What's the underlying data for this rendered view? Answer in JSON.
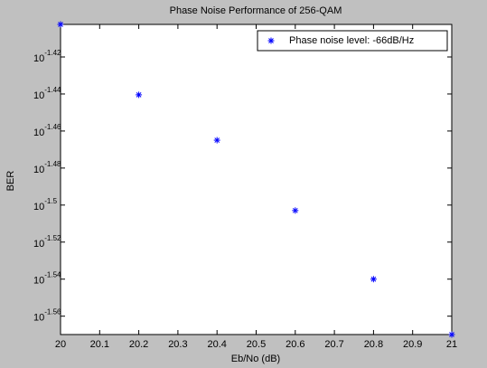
{
  "chart_data": {
    "type": "scatter",
    "title": "Phase Noise Performance of 256-QAM",
    "x_label": "Eb/No (dB)",
    "y_label": "BER",
    "y_scale": "log",
    "grid": false,
    "legend_position": "upper right",
    "xlim": [
      20,
      21
    ],
    "xticks": [
      20,
      20.1,
      20.2,
      20.3,
      20.4,
      20.5,
      20.6,
      20.7,
      20.8,
      20.9,
      21
    ],
    "ylim": [
      0.02692,
      0.03959
    ],
    "yticks": [
      {
        "value": 0.038019,
        "label": "10",
        "exponent": "-1.42"
      },
      {
        "value": 0.036308,
        "label": "10",
        "exponent": "-1.44"
      },
      {
        "value": 0.034674,
        "label": "10",
        "exponent": "-1.46"
      },
      {
        "value": 0.033113,
        "label": "10",
        "exponent": "-1.48"
      },
      {
        "value": 0.031623,
        "label": "10",
        "exponent": "-1.5"
      },
      {
        "value": 0.0302,
        "label": "10",
        "exponent": "-1.52"
      },
      {
        "value": 0.02884,
        "label": "10",
        "exponent": "-1.54"
      },
      {
        "value": 0.027542,
        "label": "10",
        "exponent": "-1.56"
      }
    ],
    "series": [
      {
        "name": "Phase noise level: -66dB/Hz",
        "color": "#0000ff",
        "x": [
          20,
          20.2,
          20.4,
          20.6,
          20.8,
          21
        ],
        "values": [
          0.03959,
          0.03627,
          0.03428,
          0.03141,
          0.02884,
          0.02692
        ]
      }
    ]
  }
}
